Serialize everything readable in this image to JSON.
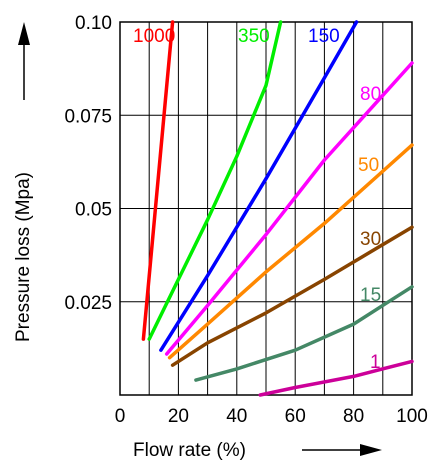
{
  "chart_data": {
    "type": "line",
    "xlabel": "Flow rate (%)",
    "ylabel": "Pressure loss (Mpa)",
    "xlim": [
      0,
      100
    ],
    "ylim": [
      0,
      0.1
    ],
    "x_ticks": [
      "0",
      "20",
      "40",
      "60",
      "80",
      "100"
    ],
    "y_ticks": [
      "0.025",
      "0.05",
      "0.075",
      "0.10"
    ],
    "grid": "vertical lines every 10%, horizontal lines every 0.025",
    "series": [
      {
        "name": "1000",
        "color": "#ff0000",
        "x": [
          8,
          18
        ],
        "y": [
          0.015,
          0.1
        ]
      },
      {
        "name": "350",
        "color": "#00ee00",
        "x": [
          10,
          20,
          30,
          40,
          50,
          55
        ],
        "y": [
          0.015,
          0.031,
          0.047,
          0.064,
          0.083,
          0.1
        ]
      },
      {
        "name": "150",
        "color": "#0000ff",
        "x": [
          14,
          30,
          50,
          70,
          81
        ],
        "y": [
          0.012,
          0.032,
          0.058,
          0.085,
          0.1
        ]
      },
      {
        "name": "80",
        "color": "#ff00ff",
        "x": [
          16,
          30,
          50,
          70,
          100
        ],
        "y": [
          0.011,
          0.024,
          0.043,
          0.063,
          0.089
        ]
      },
      {
        "name": "50",
        "color": "#ff8800",
        "x": [
          17,
          30,
          50,
          70,
          100
        ],
        "y": [
          0.01,
          0.019,
          0.033,
          0.046,
          0.067
        ]
      },
      {
        "name": "30",
        "color": "#884400",
        "x": [
          18,
          30,
          50,
          70,
          100
        ],
        "y": [
          0.008,
          0.014,
          0.022,
          0.031,
          0.045
        ]
      },
      {
        "name": "15",
        "color": "#448866",
        "x": [
          26,
          40,
          60,
          80,
          100
        ],
        "y": [
          0.004,
          0.007,
          0.012,
          0.019,
          0.029
        ]
      },
      {
        "name": "1",
        "color": "#cc0099",
        "x": [
          48,
          60,
          80,
          100
        ],
        "y": [
          0.0,
          0.002,
          0.005,
          0.009
        ]
      }
    ]
  }
}
